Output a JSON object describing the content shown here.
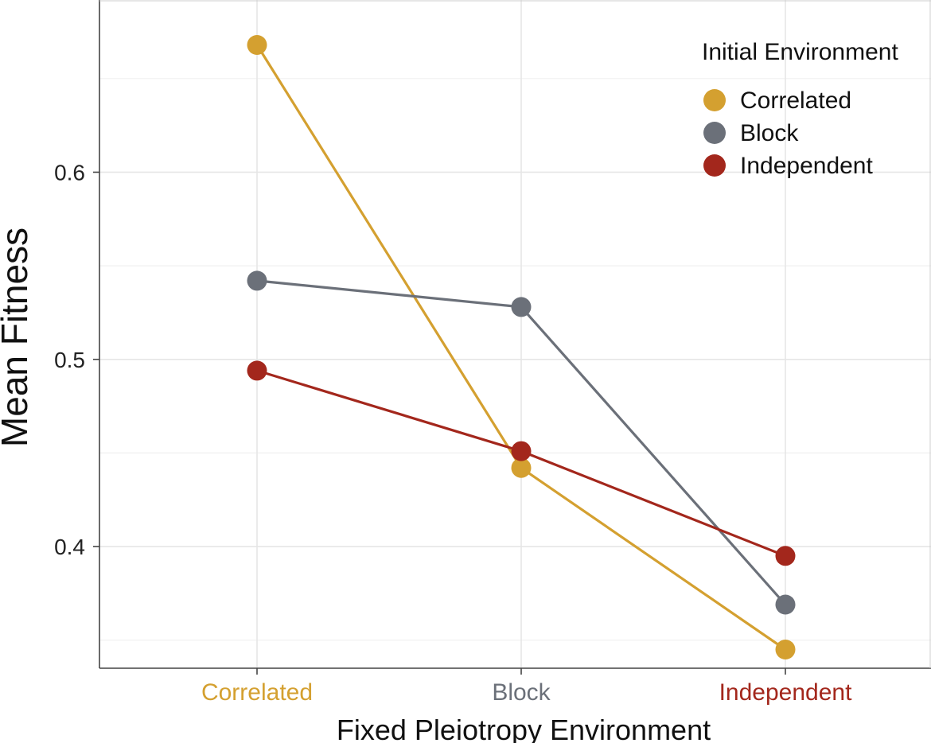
{
  "chart_data": {
    "type": "line",
    "title": "",
    "xlabel": "Fixed Pleiotropy Environment",
    "ylabel": "Mean Fitness",
    "categories": [
      "Correlated",
      "Block",
      "Independent"
    ],
    "category_colors": [
      "#D4A030",
      "#6B7079",
      "#A3271C"
    ],
    "ylim": [
      0.335,
      0.692
    ],
    "yticks": [
      0.4,
      0.5,
      0.6
    ],
    "ytick_labels": [
      "0.4",
      "0.5",
      "0.6"
    ],
    "grid": true,
    "legend": {
      "title": "Initial Environment",
      "position": "top-right"
    },
    "series": [
      {
        "name": "Correlated",
        "color": "#D4A030",
        "values": [
          0.668,
          0.442,
          0.345
        ]
      },
      {
        "name": "Block",
        "color": "#6B7079",
        "values": [
          0.542,
          0.528,
          0.369
        ]
      },
      {
        "name": "Independent",
        "color": "#A3271C",
        "values": [
          0.494,
          0.451,
          0.395
        ]
      }
    ]
  }
}
